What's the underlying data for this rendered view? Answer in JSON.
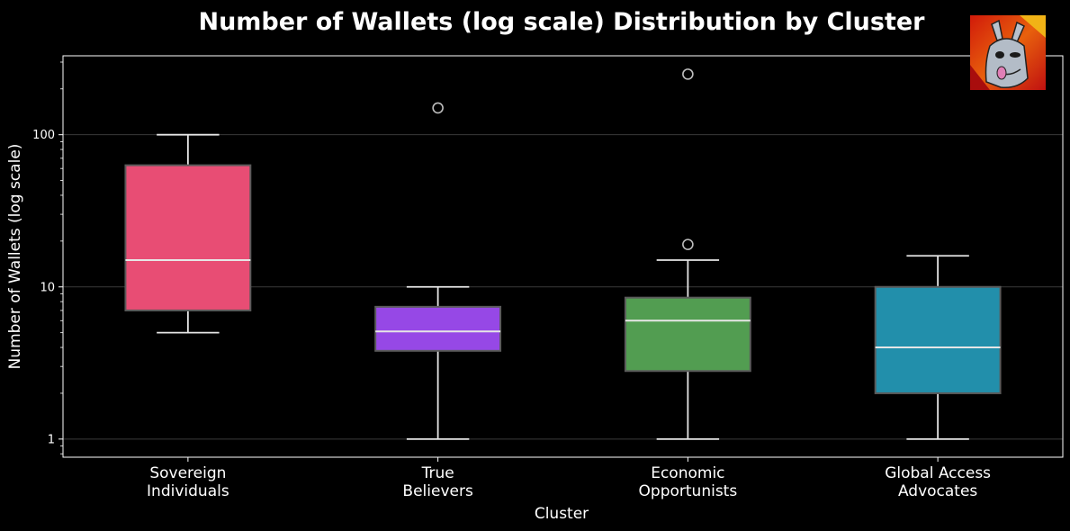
{
  "chart_data": {
    "type": "box",
    "title": "Number of Wallets (log scale) Distribution by Cluster",
    "xlabel": "Cluster",
    "ylabel": "Number of Wallets (log scale)",
    "yscale": "log",
    "ylim": [
      0.76,
      330
    ],
    "yticks": [
      {
        "value": 1,
        "label": "1"
      },
      {
        "value": 10,
        "label": "10"
      },
      {
        "value": 100,
        "label": "100"
      }
    ],
    "grid": true,
    "categories": [
      {
        "line1": "Sovereign",
        "line2": "Individuals"
      },
      {
        "line1": "True",
        "line2": "Believers"
      },
      {
        "line1": "Economic",
        "line2": "Opportunists"
      },
      {
        "line1": "Global Access",
        "line2": "Advocates"
      }
    ],
    "boxes": [
      {
        "whisker_low": 5,
        "q1": 7,
        "median": 15,
        "q3": 63,
        "whisker_high": 100,
        "outliers": [],
        "color": "#e84d74"
      },
      {
        "whisker_low": 1,
        "q1": 3.8,
        "median": 5.1,
        "q3": 7.4,
        "whisker_high": 10,
        "outliers": [
          150
        ],
        "color": "#9648e6"
      },
      {
        "whisker_low": 1,
        "q1": 2.8,
        "median": 6,
        "q3": 8.5,
        "whisker_high": 15,
        "outliers": [
          19,
          250
        ],
        "color": "#529d51"
      },
      {
        "whisker_low": 1,
        "q1": 2,
        "median": 4,
        "q3": 10,
        "whisker_high": 16,
        "outliers": [],
        "color": "#228fab"
      }
    ]
  },
  "colors": {
    "background": "#000000",
    "text": "#ffffff",
    "grid": "#3a3a3a",
    "box_edge": "#5a5a5a",
    "whisker": "#e6e6e6",
    "median": "#e6e6e6"
  },
  "logo": {
    "icon": "llama-avatar-icon"
  }
}
